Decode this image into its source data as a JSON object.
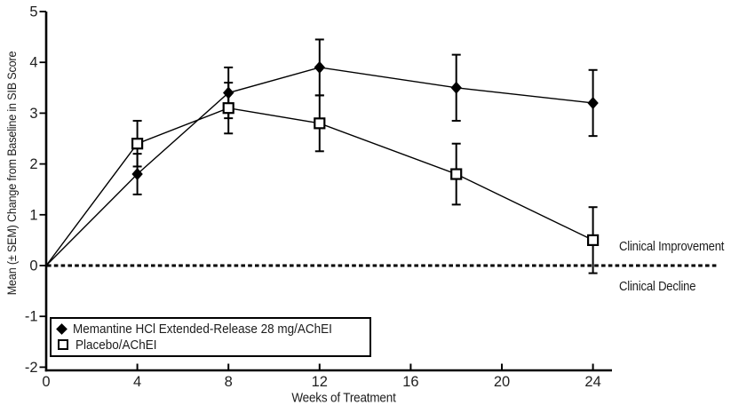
{
  "chart_data": {
    "type": "line",
    "title": "",
    "xlabel": "Weeks of Treatment",
    "ylabel": "Mean (± SEM) Change from Baseline in SIB Score",
    "x": [
      0,
      4,
      8,
      12,
      18,
      24
    ],
    "x_ticks": [
      0,
      4,
      8,
      12,
      16,
      20,
      24
    ],
    "y_ticks": [
      5,
      4,
      3,
      2,
      1,
      0,
      -1,
      -2
    ],
    "xlim": [
      0,
      24.9
    ],
    "ylim": [
      -2,
      5
    ],
    "grid": false,
    "legend_position": "bottom-left",
    "series": [
      {
        "name": "Memantine HCl Extended-Release 28 mg/AChEI",
        "marker": "filled-diamond",
        "color": "#000000",
        "values": [
          0,
          1.8,
          3.4,
          3.9,
          3.5,
          3.2
        ],
        "sem": [
          0,
          0.4,
          0.5,
          0.55,
          0.65,
          0.65
        ]
      },
      {
        "name": "Placebo/AChEI",
        "marker": "open-square",
        "color": "#000000",
        "values": [
          0,
          2.4,
          3.1,
          2.8,
          1.8,
          0.5
        ],
        "sem": [
          0,
          0.45,
          0.5,
          0.55,
          0.6,
          0.65
        ]
      }
    ],
    "reference_line": {
      "y": 0,
      "style": "dotted"
    },
    "annotations": [
      {
        "text": "Clinical Improvement",
        "position": "right-of-plot-above-zero-line"
      },
      {
        "text": "Clinical Decline",
        "position": "right-of-plot-below-zero-line"
      }
    ],
    "colors": {
      "foreground": "#000000",
      "background": "#ffffff"
    }
  }
}
